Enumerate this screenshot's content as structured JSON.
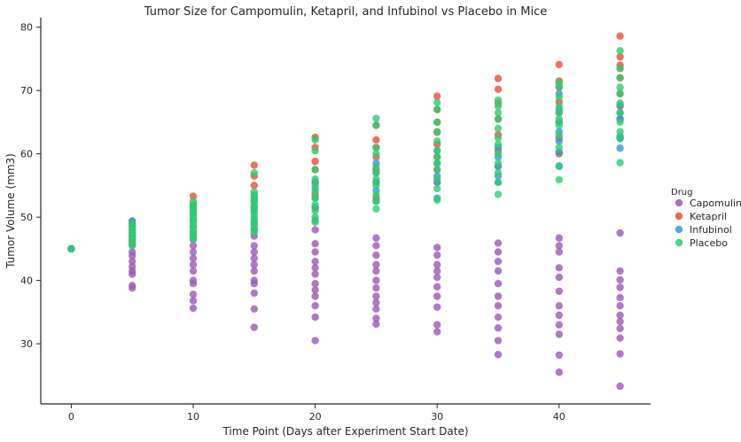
{
  "chart_data": {
    "type": "scatter",
    "title": "Tumor Size for Campomulin, Ketapril, and Infubinol vs Placebo in Mice",
    "xlabel": "Time Point (Days after Experiment Start Date)",
    "ylabel": "Tumor Volume (mm3)",
    "xlim": [
      -2.5,
      47.5
    ],
    "ylim": [
      20.5,
      81.5
    ],
    "xticks": [
      0,
      10,
      20,
      30,
      40
    ],
    "yticks": [
      30,
      40,
      50,
      60,
      70,
      80
    ],
    "legend_title": "Drug",
    "legend_position": "right",
    "series": [
      {
        "name": "Capomulin",
        "color": "#9b59b6",
        "points": [
          [
            0,
            45.0
          ],
          [
            5,
            38.8
          ],
          [
            5,
            39.2
          ],
          [
            5,
            41.0
          ],
          [
            5,
            41.5
          ],
          [
            5,
            42.2
          ],
          [
            5,
            43.0
          ],
          [
            5,
            43.9
          ],
          [
            5,
            44.5
          ],
          [
            5,
            45.6
          ],
          [
            5,
            46.3
          ],
          [
            5,
            47.0
          ],
          [
            10,
            35.6
          ],
          [
            10,
            36.8
          ],
          [
            10,
            37.8
          ],
          [
            10,
            39.5
          ],
          [
            10,
            40.0
          ],
          [
            10,
            41.5
          ],
          [
            10,
            42.5
          ],
          [
            10,
            43.5
          ],
          [
            10,
            44.5
          ],
          [
            10,
            45.5
          ],
          [
            10,
            46.5
          ],
          [
            15,
            32.6
          ],
          [
            15,
            35.5
          ],
          [
            15,
            38.0
          ],
          [
            15,
            39.5
          ],
          [
            15,
            40.0
          ],
          [
            15,
            41.5
          ],
          [
            15,
            42.5
          ],
          [
            15,
            43.5
          ],
          [
            15,
            44.5
          ],
          [
            15,
            45.5
          ],
          [
            15,
            47.0
          ],
          [
            15,
            48.0
          ],
          [
            20,
            30.5
          ],
          [
            20,
            34.2
          ],
          [
            20,
            36.0
          ],
          [
            20,
            37.5
          ],
          [
            20,
            38.5
          ],
          [
            20,
            39.5
          ],
          [
            20,
            41.0
          ],
          [
            20,
            42.0
          ],
          [
            20,
            43.0
          ],
          [
            20,
            44.5
          ],
          [
            20,
            45.8
          ],
          [
            20,
            48.0
          ],
          [
            25,
            33.1
          ],
          [
            25,
            34.0
          ],
          [
            25,
            35.5
          ],
          [
            25,
            36.5
          ],
          [
            25,
            37.5
          ],
          [
            25,
            38.8
          ],
          [
            25,
            40.0
          ],
          [
            25,
            41.5
          ],
          [
            25,
            42.5
          ],
          [
            25,
            44.0
          ],
          [
            25,
            45.5
          ],
          [
            25,
            46.7
          ],
          [
            30,
            31.9
          ],
          [
            30,
            33.0
          ],
          [
            30,
            35.8
          ],
          [
            30,
            37.5
          ],
          [
            30,
            39.0
          ],
          [
            30,
            40.5
          ],
          [
            30,
            41.5
          ],
          [
            30,
            42.5
          ],
          [
            30,
            44.0
          ],
          [
            30,
            45.2
          ],
          [
            35,
            28.3
          ],
          [
            35,
            30.5
          ],
          [
            35,
            32.5
          ],
          [
            35,
            34.2
          ],
          [
            35,
            36.0
          ],
          [
            35,
            37.5
          ],
          [
            35,
            39.5
          ],
          [
            35,
            41.5
          ],
          [
            35,
            43.0
          ],
          [
            35,
            44.5
          ],
          [
            35,
            45.9
          ],
          [
            40,
            25.5
          ],
          [
            40,
            28.2
          ],
          [
            40,
            31.5
          ],
          [
            40,
            33.0
          ],
          [
            40,
            34.5
          ],
          [
            40,
            36.0
          ],
          [
            40,
            38.3
          ],
          [
            40,
            40.5
          ],
          [
            40,
            42.0
          ],
          [
            40,
            44.5
          ],
          [
            40,
            45.5
          ],
          [
            40,
            46.7
          ],
          [
            45,
            23.3
          ],
          [
            45,
            28.4
          ],
          [
            45,
            30.9
          ],
          [
            45,
            32.4
          ],
          [
            45,
            33.5
          ],
          [
            45,
            34.5
          ],
          [
            45,
            36.0
          ],
          [
            45,
            37.3
          ],
          [
            45,
            38.9
          ],
          [
            45,
            40.1
          ],
          [
            45,
            41.5
          ],
          [
            45,
            47.5
          ]
        ]
      },
      {
        "name": "Ketapril",
        "color": "#e74c3c",
        "points": [
          [
            0,
            45.0
          ],
          [
            5,
            46.0
          ],
          [
            5,
            47.0
          ],
          [
            5,
            48.0
          ],
          [
            5,
            48.8
          ],
          [
            5,
            49.3
          ],
          [
            10,
            47.5
          ],
          [
            10,
            49.5
          ],
          [
            10,
            51.0
          ],
          [
            10,
            52.0
          ],
          [
            10,
            53.3
          ],
          [
            15,
            49.0
          ],
          [
            15,
            51.5
          ],
          [
            15,
            53.0
          ],
          [
            15,
            55.0
          ],
          [
            15,
            56.5
          ],
          [
            15,
            58.2
          ],
          [
            20,
            51.5
          ],
          [
            20,
            53.5
          ],
          [
            20,
            55.5
          ],
          [
            20,
            57.5
          ],
          [
            20,
            58.8
          ],
          [
            20,
            61.0
          ],
          [
            20,
            62.6
          ],
          [
            25,
            53.0
          ],
          [
            25,
            55.5
          ],
          [
            25,
            57.5
          ],
          [
            25,
            59.5
          ],
          [
            25,
            61.0
          ],
          [
            25,
            62.2
          ],
          [
            25,
            64.5
          ],
          [
            30,
            55.5
          ],
          [
            30,
            57.5
          ],
          [
            30,
            59.5
          ],
          [
            30,
            61.5
          ],
          [
            30,
            63.4
          ],
          [
            30,
            65.0
          ],
          [
            30,
            67.0
          ],
          [
            30,
            69.1
          ],
          [
            35,
            58.0
          ],
          [
            35,
            60.5
          ],
          [
            35,
            63.0
          ],
          [
            35,
            65.5
          ],
          [
            35,
            68.0
          ],
          [
            35,
            70.2
          ],
          [
            35,
            71.9
          ],
          [
            40,
            60.0
          ],
          [
            40,
            62.5
          ],
          [
            40,
            65.0
          ],
          [
            40,
            66.5
          ],
          [
            40,
            68.2
          ],
          [
            40,
            70.5
          ],
          [
            40,
            71.5
          ],
          [
            40,
            74.1
          ],
          [
            45,
            62.5
          ],
          [
            45,
            65.5
          ],
          [
            45,
            67.5
          ],
          [
            45,
            69.5
          ],
          [
            45,
            72.0
          ],
          [
            45,
            73.5
          ],
          [
            45,
            74.0
          ],
          [
            45,
            75.3
          ],
          [
            45,
            78.6
          ]
        ]
      },
      {
        "name": "Infubinol",
        "color": "#3498db",
        "points": [
          [
            0,
            45.0
          ],
          [
            5,
            46.5
          ],
          [
            5,
            47.5
          ],
          [
            5,
            48.5
          ],
          [
            5,
            49.4
          ],
          [
            10,
            47.0
          ],
          [
            10,
            48.5
          ],
          [
            10,
            49.5
          ],
          [
            10,
            50.5
          ],
          [
            10,
            51.5
          ],
          [
            15,
            49.5
          ],
          [
            15,
            51.0
          ],
          [
            15,
            52.5
          ],
          [
            15,
            53.5
          ],
          [
            20,
            49.5
          ],
          [
            20,
            51.5
          ],
          [
            20,
            53.0
          ],
          [
            20,
            54.5
          ],
          [
            20,
            55.5
          ],
          [
            25,
            52.5
          ],
          [
            25,
            54.2
          ],
          [
            25,
            55.5
          ],
          [
            25,
            57.0
          ],
          [
            25,
            58.5
          ],
          [
            30,
            53.0
          ],
          [
            30,
            55.5
          ],
          [
            30,
            56.5
          ],
          [
            30,
            58.5
          ],
          [
            30,
            60.5
          ],
          [
            35,
            55.5
          ],
          [
            35,
            56.5
          ],
          [
            35,
            58.0
          ],
          [
            35,
            59.5
          ],
          [
            35,
            61.0
          ],
          [
            40,
            58.0
          ],
          [
            40,
            60.3
          ],
          [
            40,
            62.0
          ],
          [
            40,
            63.5
          ],
          [
            40,
            65.0
          ],
          [
            40,
            67.0
          ],
          [
            40,
            69.5
          ],
          [
            45,
            60.9
          ],
          [
            45,
            62.4
          ],
          [
            45,
            62.8
          ],
          [
            45,
            65.5
          ],
          [
            45,
            66.5
          ],
          [
            45,
            67.7
          ]
        ]
      },
      {
        "name": "Placebo",
        "color": "#2ecc71",
        "points": [
          [
            0,
            45.0
          ],
          [
            5,
            45.5
          ],
          [
            5,
            46.0
          ],
          [
            5,
            46.5
          ],
          [
            5,
            47.0
          ],
          [
            5,
            47.5
          ],
          [
            5,
            48.0
          ],
          [
            5,
            48.5
          ],
          [
            5,
            49.0
          ],
          [
            10,
            46.5
          ],
          [
            10,
            47.0
          ],
          [
            10,
            47.5
          ],
          [
            10,
            48.0
          ],
          [
            10,
            48.5
          ],
          [
            10,
            49.0
          ],
          [
            10,
            49.5
          ],
          [
            10,
            50.0
          ],
          [
            10,
            50.5
          ],
          [
            10,
            51.0
          ],
          [
            10,
            51.5
          ],
          [
            10,
            52.0
          ],
          [
            10,
            52.5
          ],
          [
            15,
            47.5
          ],
          [
            15,
            48.0
          ],
          [
            15,
            48.5
          ],
          [
            15,
            49.0
          ],
          [
            15,
            49.5
          ],
          [
            15,
            50.0
          ],
          [
            15,
            50.5
          ],
          [
            15,
            51.0
          ],
          [
            15,
            51.5
          ],
          [
            15,
            52.0
          ],
          [
            15,
            52.5
          ],
          [
            15,
            53.0
          ],
          [
            15,
            53.5
          ],
          [
            15,
            54.0
          ],
          [
            15,
            57.0
          ],
          [
            20,
            49.2
          ],
          [
            20,
            50.0
          ],
          [
            20,
            51.0
          ],
          [
            20,
            52.0
          ],
          [
            20,
            53.0
          ],
          [
            20,
            54.0
          ],
          [
            20,
            55.0
          ],
          [
            20,
            56.0
          ],
          [
            20,
            57.5
          ],
          [
            20,
            60.5
          ],
          [
            20,
            62.2
          ],
          [
            25,
            51.3
          ],
          [
            25,
            52.5
          ],
          [
            25,
            53.5
          ],
          [
            25,
            55.0
          ],
          [
            25,
            56.0
          ],
          [
            25,
            57.0
          ],
          [
            25,
            58.0
          ],
          [
            25,
            60.0
          ],
          [
            25,
            61.0
          ],
          [
            25,
            64.5
          ],
          [
            25,
            65.6
          ],
          [
            30,
            52.7
          ],
          [
            30,
            54.5
          ],
          [
            30,
            56.0
          ],
          [
            30,
            57.5
          ],
          [
            30,
            58.5
          ],
          [
            30,
            59.5
          ],
          [
            30,
            60.5
          ],
          [
            30,
            62.0
          ],
          [
            30,
            63.5
          ],
          [
            30,
            65.0
          ],
          [
            30,
            67.0
          ],
          [
            30,
            68.1
          ],
          [
            35,
            53.6
          ],
          [
            35,
            55.5
          ],
          [
            35,
            57.0
          ],
          [
            35,
            58.5
          ],
          [
            35,
            60.0
          ],
          [
            35,
            61.5
          ],
          [
            35,
            62.5
          ],
          [
            35,
            64.0
          ],
          [
            35,
            65.5
          ],
          [
            35,
            66.5
          ],
          [
            35,
            67.5
          ],
          [
            35,
            68.5
          ],
          [
            40,
            55.9
          ],
          [
            40,
            58.1
          ],
          [
            40,
            61.0
          ],
          [
            40,
            63.0
          ],
          [
            40,
            64.5
          ],
          [
            40,
            65.5
          ],
          [
            40,
            66.5
          ],
          [
            40,
            67.5
          ],
          [
            40,
            69.0
          ],
          [
            40,
            70.6
          ],
          [
            40,
            71.2
          ],
          [
            45,
            58.6
          ],
          [
            45,
            62.5
          ],
          [
            45,
            63.5
          ],
          [
            45,
            65.0
          ],
          [
            45,
            66.5
          ],
          [
            45,
            68.0
          ],
          [
            45,
            69.5
          ],
          [
            45,
            70.5
          ],
          [
            45,
            72.0
          ],
          [
            45,
            73.5
          ],
          [
            45,
            76.3
          ]
        ]
      }
    ]
  }
}
